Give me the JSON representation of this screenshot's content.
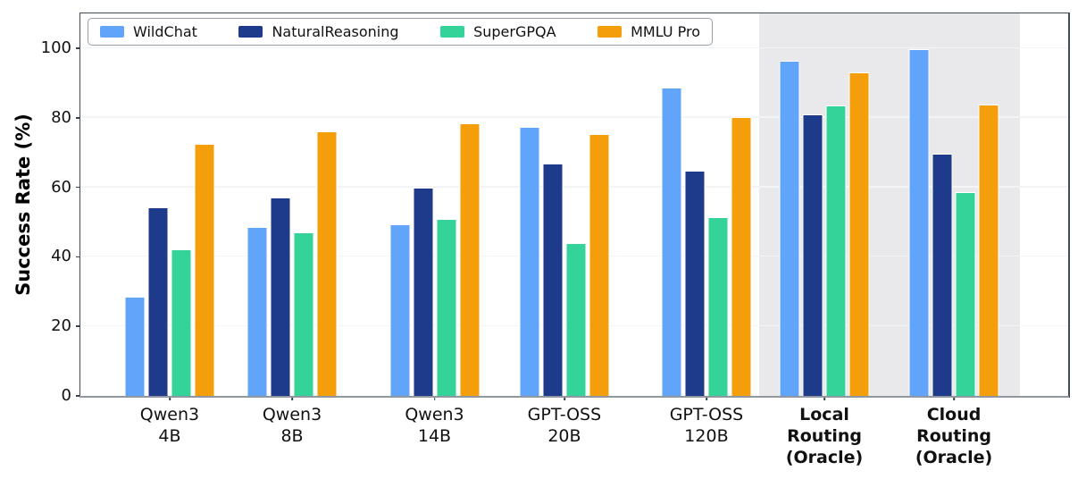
{
  "chart_data": {
    "type": "bar",
    "title": "",
    "xlabel": "",
    "ylabel": "Success Rate (%)",
    "ylim": [
      0,
      110
    ],
    "yticks": [
      0,
      20,
      40,
      60,
      80,
      100
    ],
    "ytick_labels": [
      "0",
      "20",
      "40",
      "60",
      "80",
      "100"
    ],
    "grid": "horizontal-light",
    "legend_position": "top-left-inside",
    "legend_entries": [
      "WildChat",
      "NaturalReasoning",
      "SuperGPQA",
      "MMLU Pro"
    ],
    "categories": [
      "Qwen3\n4B",
      "Qwen3\n8B",
      "Qwen3\n14B",
      "GPT-OSS\n20B",
      "GPT-OSS\n120B",
      "Local\nRouting\n(Oracle)",
      "Cloud\nRouting\n(Oracle)"
    ],
    "category_bold": [
      false,
      false,
      false,
      false,
      false,
      true,
      true
    ],
    "series": [
      {
        "name": "WildChat",
        "color": "#60A5FA",
        "values": [
          28.5,
          48.7,
          49.4,
          77.3,
          88.8,
          96.5,
          99.8
        ]
      },
      {
        "name": "NaturalReasoning",
        "color": "#1E3A8A",
        "values": [
          54.3,
          57.0,
          60.0,
          66.8,
          64.7,
          81.1,
          69.6
        ]
      },
      {
        "name": "SuperGPQA",
        "color": "#34D399",
        "values": [
          42.2,
          47.0,
          50.9,
          44.0,
          51.3,
          83.5,
          58.6
        ]
      },
      {
        "name": "MMLU Pro",
        "color": "#F59E0B",
        "values": [
          72.4,
          76.2,
          78.5,
          75.4,
          80.3,
          93.1,
          83.9
        ]
      }
    ],
    "highlight_region": {
      "covers_categories": [
        "Local Routing (Oracle)",
        "Cloud Routing (Oracle)"
      ],
      "color": "#e9e9eb"
    }
  }
}
